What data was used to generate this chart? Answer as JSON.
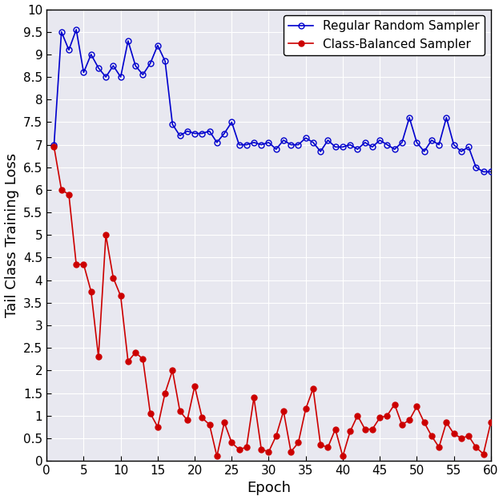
{
  "blue_x": [
    1,
    2,
    3,
    4,
    5,
    6,
    7,
    8,
    9,
    10,
    11,
    12,
    13,
    14,
    15,
    16,
    17,
    18,
    19,
    20,
    21,
    22,
    23,
    24,
    25,
    26,
    27,
    28,
    29,
    30,
    31,
    32,
    33,
    34,
    35,
    36,
    37,
    38,
    39,
    40,
    41,
    42,
    43,
    44,
    45,
    46,
    47,
    48,
    49,
    50,
    51,
    52,
    53,
    54,
    55,
    56,
    57,
    58,
    59,
    60
  ],
  "blue_y": [
    7.0,
    9.5,
    9.1,
    9.55,
    8.6,
    9.0,
    8.7,
    8.5,
    8.75,
    8.5,
    9.3,
    8.75,
    8.55,
    8.8,
    9.2,
    8.85,
    7.45,
    7.2,
    7.3,
    7.25,
    7.25,
    7.3,
    7.05,
    7.25,
    7.5,
    7.0,
    7.0,
    7.05,
    7.0,
    7.05,
    6.9,
    7.1,
    7.0,
    7.0,
    7.15,
    7.05,
    6.85,
    7.1,
    6.95,
    6.95,
    7.0,
    6.9,
    7.05,
    6.95,
    7.1,
    7.0,
    6.9,
    7.05,
    7.6,
    7.05,
    6.85,
    7.1,
    7.0,
    7.6,
    7.0,
    6.85,
    6.95,
    6.5,
    6.4,
    6.4
  ],
  "red_x": [
    1,
    2,
    3,
    4,
    5,
    6,
    7,
    8,
    9,
    10,
    11,
    12,
    13,
    14,
    15,
    16,
    17,
    18,
    19,
    20,
    21,
    22,
    23,
    24,
    25,
    26,
    27,
    28,
    29,
    30,
    31,
    32,
    33,
    34,
    35,
    36,
    37,
    38,
    39,
    40,
    41,
    42,
    43,
    44,
    45,
    46,
    47,
    48,
    49,
    50,
    51,
    52,
    53,
    54,
    55,
    56,
    57,
    58,
    59,
    60
  ],
  "red_y": [
    6.95,
    6.0,
    5.9,
    4.35,
    4.35,
    3.75,
    2.3,
    5.0,
    4.05,
    3.65,
    2.2,
    2.4,
    2.25,
    1.05,
    0.75,
    1.5,
    2.0,
    1.1,
    0.9,
    1.65,
    0.95,
    0.8,
    0.1,
    0.85,
    0.4,
    0.25,
    0.3,
    1.4,
    0.25,
    0.2,
    0.55,
    1.1,
    0.2,
    0.4,
    1.15,
    1.6,
    0.35,
    0.3,
    0.7,
    0.1,
    0.65,
    1.0,
    0.7,
    0.7,
    0.95,
    1.0,
    1.25,
    0.8,
    0.9,
    1.2,
    0.85,
    0.55,
    0.3,
    0.85,
    0.6,
    0.5,
    0.55,
    0.3,
    0.15,
    0.85
  ],
  "blue_color": "#0000cd",
  "red_color": "#cc0000",
  "xlabel": "Epoch",
  "ylabel": "Tail Class Training Loss",
  "xlim": [
    0,
    60
  ],
  "ylim": [
    0,
    10
  ],
  "ytick_vals": [
    0,
    0.5,
    1.0,
    1.5,
    2.0,
    2.5,
    3.0,
    3.5,
    4.0,
    4.5,
    5.0,
    5.5,
    6.0,
    6.5,
    7.0,
    7.5,
    8.0,
    8.5,
    9.0,
    9.5,
    10.0
  ],
  "xtick_vals": [
    0,
    5,
    10,
    15,
    20,
    25,
    30,
    35,
    40,
    45,
    50,
    55,
    60
  ],
  "legend_blue": "Regular Random Sampler",
  "legend_red": "Class-Balanced Sampler",
  "figsize": [
    6.28,
    6.24
  ],
  "dpi": 100,
  "axes_bg_color": "#e8e8f0",
  "fig_bg_color": "#ffffff",
  "grid_color": "#ffffff",
  "grid_linewidth": 0.8,
  "marker_size": 5,
  "linewidth": 1.2,
  "font_size_label": 13,
  "font_size_tick": 11,
  "font_size_legend": 11
}
